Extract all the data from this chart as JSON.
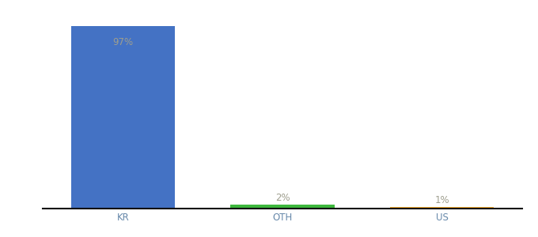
{
  "categories": [
    "KR",
    "OTH",
    "US"
  ],
  "values": [
    97,
    2,
    1
  ],
  "bar_colors": [
    "#4472c4",
    "#3db83d",
    "#f0a830"
  ],
  "labels": [
    "97%",
    "2%",
    "1%"
  ],
  "label_color": "#9e9e8e",
  "label_fontsize": 8.5,
  "tick_fontsize": 8.5,
  "tick_color": "#6688aa",
  "background_color": "#ffffff",
  "bar_width": 0.65,
  "ylim": [
    0,
    107
  ],
  "xlim": [
    -0.5,
    2.5
  ]
}
